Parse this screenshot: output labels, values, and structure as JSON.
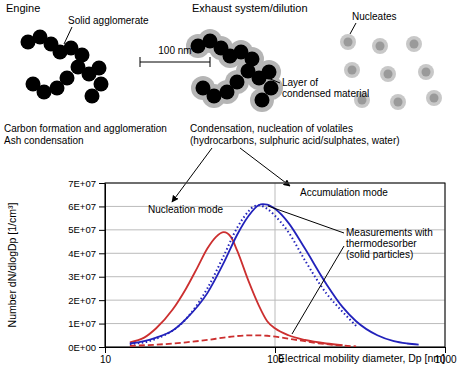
{
  "diagram": {
    "engine": "Engine",
    "exhaust": "Exhaust system/dilution",
    "solid_agglomerate": "Solid agglomerate",
    "scale_bar": "100 nm",
    "condensed_layer": [
      "Layer of",
      "condensed material"
    ],
    "nucleates": "Nucleates",
    "engine_process": [
      "Carbon formation and agglomeration",
      "Ash condensation"
    ],
    "exhaust_process": [
      "Condensation, nucleation of volatiles",
      "(hydrocarbons, sulphuric acid/sulphates, water)"
    ]
  },
  "chart_data": {
    "type": "line",
    "x_label": "Electrical mobility diameter, Dp [nm]",
    "y_label": "Number dN/dlogDp [1/cm³]",
    "log": "x",
    "grid": true,
    "xlim": [
      10,
      1000
    ],
    "xticks": [
      10,
      100,
      1000
    ],
    "ylim": [
      0,
      70000000
    ],
    "yticks": [
      {
        "value": 0,
        "label": "0E+00"
      },
      {
        "value": 10000000,
        "label": "1E+07"
      },
      {
        "value": 20000000,
        "label": "2E+07"
      },
      {
        "value": 30000000,
        "label": "3E+07"
      },
      {
        "value": 40000000,
        "label": "4E+07"
      },
      {
        "value": 50000000,
        "label": "5E+07"
      },
      {
        "value": 60000000,
        "label": "6E+07"
      },
      {
        "value": 70000000,
        "label": "7E+07"
      }
    ],
    "series": [
      {
        "color": "#cc2f2f",
        "line_style": "solid",
        "x": [
          14,
          17,
          20,
          25,
          30,
          35,
          40,
          45,
          50,
          55,
          60,
          70,
          80,
          90,
          100,
          120,
          150,
          200,
          250
        ],
        "values": [
          2000000,
          4000000,
          8000000,
          16000000,
          25000000,
          34000000,
          42000000,
          47000000,
          49000000,
          47000000,
          41000000,
          28000000,
          18000000,
          11000000,
          8000000,
          5000000,
          3000000,
          1500000,
          800000
        ]
      },
      {
        "color": "#cc2f2f",
        "line_style": "dashed",
        "x": [
          14,
          20,
          30,
          40,
          50,
          60,
          75,
          90,
          110,
          140,
          180,
          250,
          300
        ],
        "values": [
          500000,
          1000000,
          2000000,
          3000000,
          4000000,
          4700000,
          5000000,
          4800000,
          4000000,
          2800000,
          1600000,
          600000,
          300000
        ]
      },
      {
        "color": "#2222bb",
        "line_style": "solid",
        "x": [
          14,
          17,
          20,
          25,
          30,
          40,
          50,
          60,
          70,
          80,
          85,
          90,
          100,
          120,
          150,
          200,
          250,
          300,
          400,
          500,
          600,
          700
        ],
        "values": [
          1500000,
          2500000,
          4000000,
          7000000,
          12000000,
          23000000,
          36000000,
          48000000,
          56000000,
          60500000,
          61000000,
          60800000,
          59000000,
          53000000,
          42000000,
          27000000,
          17000000,
          11000000,
          5000000,
          2500000,
          1500000,
          1000000
        ]
      },
      {
        "color": "#2222bb",
        "line_style": "dotted",
        "x": [
          14,
          20,
          30,
          40,
          50,
          60,
          70,
          75,
          80,
          90,
          100,
          120,
          150,
          200,
          250,
          300
        ],
        "values": [
          1200000,
          3500000,
          12000000,
          25000000,
          39000000,
          51000000,
          58000000,
          60000000,
          60500000,
          59000000,
          56000000,
          49000000,
          37000000,
          23000000,
          15000000,
          9000000
        ]
      }
    ],
    "annotations": [
      {
        "text": [
          "Nucleation mode"
        ]
      },
      {
        "text": [
          "Accumulation mode"
        ]
      },
      {
        "text": [
          "Measurements with",
          "thermodesorber",
          "(solid particles)"
        ]
      }
    ]
  }
}
